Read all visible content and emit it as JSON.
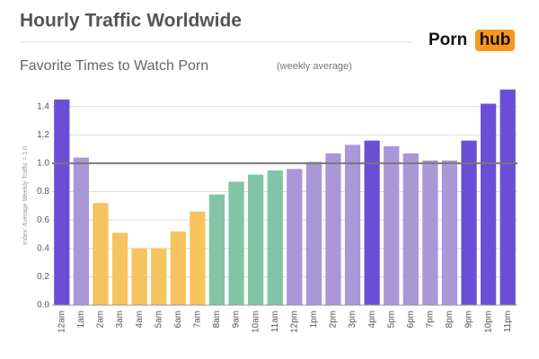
{
  "chart_data": {
    "type": "bar",
    "title": "Hourly Traffic Worldwide",
    "subtitle": "Favorite Times to Watch Porn",
    "subtitle_note": "(weekly average)",
    "brand": [
      "Porn",
      "hub"
    ],
    "y_label": "Index: Average Weekly Traffic = 1.0",
    "categories": [
      "12am",
      "1am",
      "2am",
      "3am",
      "4am",
      "5am",
      "6am",
      "7am",
      "8am",
      "9am",
      "10am",
      "11am",
      "12pm",
      "1pm",
      "2pm",
      "3pm",
      "4pm",
      "5pm",
      "6pm",
      "7pm",
      "8pm",
      "9pm",
      "10pm",
      "11pm"
    ],
    "values": [
      1.45,
      1.04,
      0.72,
      0.51,
      0.4,
      0.4,
      0.52,
      0.66,
      0.78,
      0.87,
      0.92,
      0.95,
      0.96,
      1.01,
      1.07,
      1.13,
      1.16,
      1.12,
      1.07,
      1.02,
      1.02,
      1.16,
      1.42,
      1.52
    ],
    "colors": [
      "#6a4fd6",
      "#a997d6",
      "#f5c45e",
      "#f5c45e",
      "#f5c45e",
      "#f5c45e",
      "#f5c45e",
      "#f5c45e",
      "#82c4a6",
      "#82c4a6",
      "#82c4a6",
      "#82c4a6",
      "#a997d6",
      "#a997d6",
      "#a997d6",
      "#a997d6",
      "#6a4fd6",
      "#a997d6",
      "#a997d6",
      "#a997d6",
      "#a997d6",
      "#6a4fd6",
      "#6a4fd6",
      "#6a4fd6"
    ],
    "ylim": [
      0,
      1.55
    ],
    "yticks": [
      {
        "value": 0,
        "label": "0.0"
      },
      0.2,
      0.4,
      0.6,
      0.8,
      {
        "value": 1,
        "label": "1.0"
      },
      1.2,
      1.4
    ],
    "reference_line": 1,
    "grid": true
  }
}
